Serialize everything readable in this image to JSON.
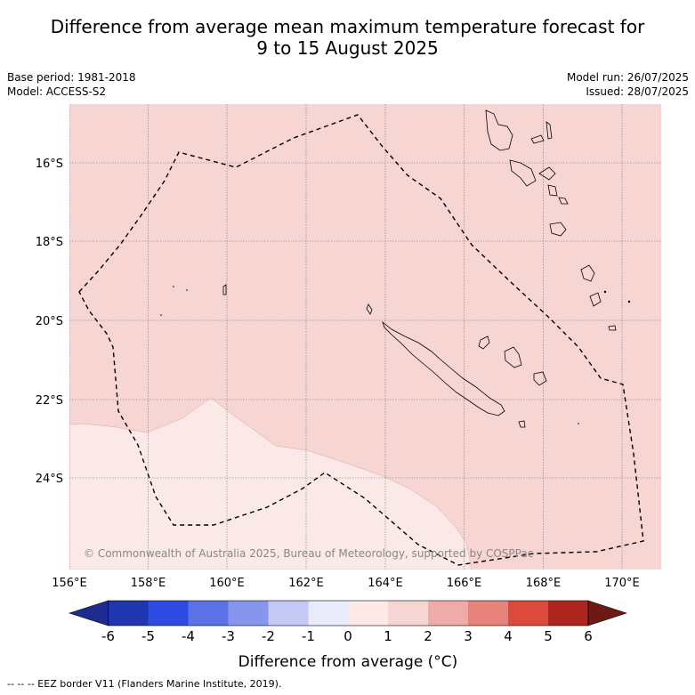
{
  "title": {
    "line1": "Difference from average mean maximum temperature forecast for",
    "line2": "9 to 15 August 2025"
  },
  "meta_left": {
    "base_period": "Base period: 1981-2018",
    "model": "Model: ACCESS-S2"
  },
  "meta_right": {
    "model_run": "Model run: 26/07/2025",
    "issued": "Issued: 28/07/2025"
  },
  "map": {
    "lon_labels": [
      "156°E",
      "158°E",
      "160°E",
      "162°E",
      "164°E",
      "166°E",
      "168°E",
      "170°E"
    ],
    "lat_labels": [
      "16°S",
      "18°S",
      "20°S",
      "22°S",
      "24°S"
    ],
    "copyright": "© Commonwealth of Australia 2025, Bureau of Meteorology, supported by COSPPac",
    "colors": {
      "anomaly_0_1": "#f6d5d3",
      "anomaly_neg1_0": "#fbe9e8",
      "coast": "#000000"
    }
  },
  "colorbar": {
    "ticks": [
      "-6",
      "-5",
      "-4",
      "-3",
      "-2",
      "-1",
      "0",
      "1",
      "2",
      "3",
      "4",
      "5",
      "6"
    ],
    "colors": [
      "#1e2b8f",
      "#2035b0",
      "#2d4be0",
      "#5a72e6",
      "#8596ec",
      "#c3c8f5",
      "#e8ebfb",
      "#fdeae8",
      "#f6d5d3",
      "#eeaba7",
      "#e8837c",
      "#dc4a3e",
      "#ad2620",
      "#6e1a14"
    ],
    "label": "Difference from average (°C)"
  },
  "legend": {
    "eez": "--  --  -- EEZ border V11 (Flanders Marine Institute, 2019)."
  }
}
